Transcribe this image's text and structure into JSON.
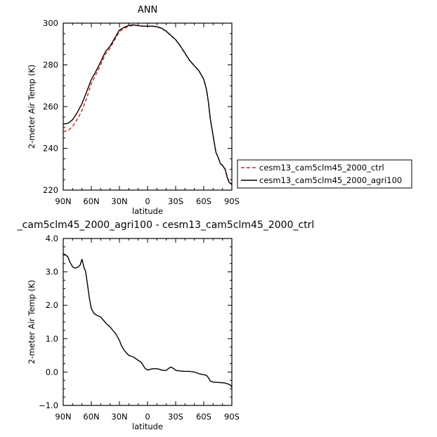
{
  "chart_data": [
    {
      "type": "line",
      "title": "ANN",
      "xlabel": "latitude",
      "ylabel": "2-meter Air Temp (K)",
      "xlim": [
        90,
        -90
      ],
      "ylim": [
        220,
        300
      ],
      "xticks": [
        90,
        60,
        30,
        0,
        -30,
        -60,
        -90
      ],
      "xtick_labels": [
        "90N",
        "60N",
        "30N",
        "0",
        "30S",
        "60S",
        "90S"
      ],
      "yticks": [
        220,
        240,
        260,
        280,
        300
      ],
      "ytick_labels": [
        "220",
        "240",
        "260",
        "280",
        "300"
      ],
      "legend_position": "right",
      "series": [
        {
          "name": "cesm13_cam5clm45_2000_ctrl",
          "color": "#d62020",
          "dash": "dashed",
          "x": [
            90,
            85,
            80,
            75,
            70,
            65,
            60,
            55,
            50,
            45,
            40,
            35,
            30,
            25,
            20,
            15,
            10,
            5,
            0,
            -5,
            -10,
            -15,
            -20,
            -25,
            -30,
            -35,
            -40,
            -45,
            -50,
            -55,
            -60,
            -63,
            -65,
            -67,
            -70,
            -73,
            -75,
            -78,
            -80,
            -83,
            -85,
            -87,
            -90
          ],
          "y": [
            248,
            248.5,
            250.5,
            254,
            258,
            264,
            271,
            275.5,
            280,
            285,
            288,
            292,
            296,
            297.5,
            298.5,
            299,
            298.8,
            298.5,
            298.4,
            298.5,
            298.2,
            297.5,
            296,
            294,
            292,
            289,
            285.5,
            282,
            279.5,
            277,
            273,
            268,
            262,
            254,
            246,
            238,
            236,
            232.5,
            232,
            230,
            226.5,
            224,
            223
          ]
        },
        {
          "name": "cesm13_cam5clm45_2000_agri100",
          "color": "#000000",
          "dash": "solid",
          "x": [
            90,
            85,
            80,
            75,
            70,
            65,
            60,
            55,
            50,
            45,
            40,
            35,
            30,
            25,
            20,
            15,
            10,
            5,
            0,
            -5,
            -10,
            -15,
            -20,
            -25,
            -30,
            -35,
            -40,
            -45,
            -50,
            -55,
            -60,
            -63,
            -65,
            -67,
            -70,
            -73,
            -75,
            -78,
            -80,
            -83,
            -85,
            -87,
            -90
          ],
          "y": [
            251.6,
            252,
            253.7,
            257.2,
            261.4,
            267.1,
            273,
            277,
            281.5,
            286.3,
            289,
            292.8,
            296.7,
            298,
            298.9,
            299.2,
            298.8,
            298.6,
            298.5,
            298.6,
            298.3,
            297.6,
            296.1,
            294.1,
            292.1,
            289.1,
            285.6,
            282.1,
            279.6,
            277.1,
            273.1,
            268.1,
            262.1,
            254.1,
            246.1,
            238.1,
            236.1,
            232.5,
            231.9,
            229.7,
            226.1,
            223.7,
            222.6
          ]
        }
      ]
    },
    {
      "type": "line",
      "title": "_cam5clm45_2000_agri100 - cesm13_cam5clm45_2000_ctrl",
      "xlabel": "latitude",
      "ylabel": "2-meter Air Temp (K)",
      "xlim": [
        90,
        -90
      ],
      "ylim": [
        -1.0,
        4.0
      ],
      "xticks": [
        90,
        60,
        30,
        0,
        -30,
        -60,
        -90
      ],
      "xtick_labels": [
        "90N",
        "60N",
        "30N",
        "0",
        "30S",
        "60S",
        "90S"
      ],
      "yticks": [
        -1.0,
        0.0,
        1.0,
        2.0,
        3.0,
        4.0
      ],
      "ytick_labels": [
        "−1.0",
        "0.0",
        "1.0",
        "2.0",
        "3.0",
        "4.0"
      ],
      "series": [
        {
          "name": "",
          "color": "#000000",
          "dash": "solid",
          "x": [
            90,
            87,
            85,
            83,
            80,
            78,
            76,
            74,
            72,
            70,
            68,
            66,
            64,
            62,
            60,
            57,
            54,
            50,
            47,
            44,
            40,
            37,
            34,
            32,
            30,
            28,
            25,
            20,
            15,
            10,
            7,
            5,
            3,
            0,
            -3,
            -5,
            -8,
            -10,
            -13,
            -15,
            -18,
            -20,
            -22,
            -25,
            -28,
            -30,
            -35,
            -40,
            -45,
            -50,
            -55,
            -60,
            -63,
            -65,
            -67,
            -70,
            -75,
            -80,
            -83,
            -85,
            -88,
            -90
          ],
          "y": [
            3.55,
            3.5,
            3.45,
            3.3,
            3.15,
            3.12,
            3.12,
            3.15,
            3.2,
            3.38,
            3.15,
            3.0,
            2.6,
            2.2,
            1.9,
            1.75,
            1.7,
            1.65,
            1.55,
            1.45,
            1.35,
            1.25,
            1.15,
            1.05,
            0.95,
            0.8,
            0.65,
            0.5,
            0.45,
            0.35,
            0.3,
            0.22,
            0.12,
            0.06,
            0.08,
            0.1,
            0.1,
            0.1,
            0.08,
            0.06,
            0.05,
            0.05,
            0.1,
            0.15,
            0.1,
            0.05,
            0.03,
            0.02,
            0.02,
            0.0,
            -0.05,
            -0.08,
            -0.1,
            -0.17,
            -0.27,
            -0.3,
            -0.31,
            -0.32,
            -0.33,
            -0.35,
            -0.38,
            -0.45
          ]
        }
      ]
    }
  ]
}
